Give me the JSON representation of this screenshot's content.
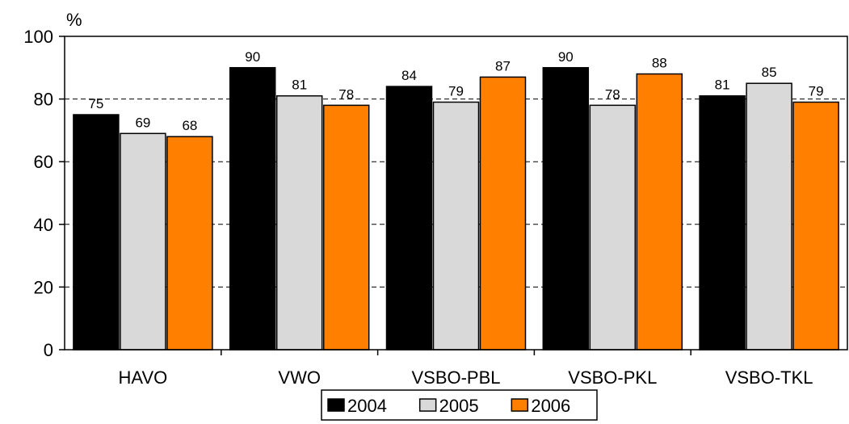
{
  "chart_data": {
    "type": "bar",
    "unit_label": "%",
    "categories": [
      "HAVO",
      "VWO",
      "VSBO-PBL",
      "VSBO-PKL",
      "VSBO-TKL"
    ],
    "series": [
      {
        "name": "2004",
        "color": "#000000",
        "values": [
          75,
          90,
          84,
          90,
          81
        ]
      },
      {
        "name": "2005",
        "color": "#d9d9d9",
        "values": [
          69,
          81,
          79,
          78,
          85
        ]
      },
      {
        "name": "2006",
        "color": "#ff7f00",
        "values": [
          68,
          78,
          87,
          88,
          79
        ]
      }
    ],
    "ylim": [
      0,
      100
    ],
    "yticks": [
      0,
      20,
      40,
      60,
      80,
      100
    ],
    "grid": "dashed horizontal",
    "legend_position": "bottom-center"
  }
}
